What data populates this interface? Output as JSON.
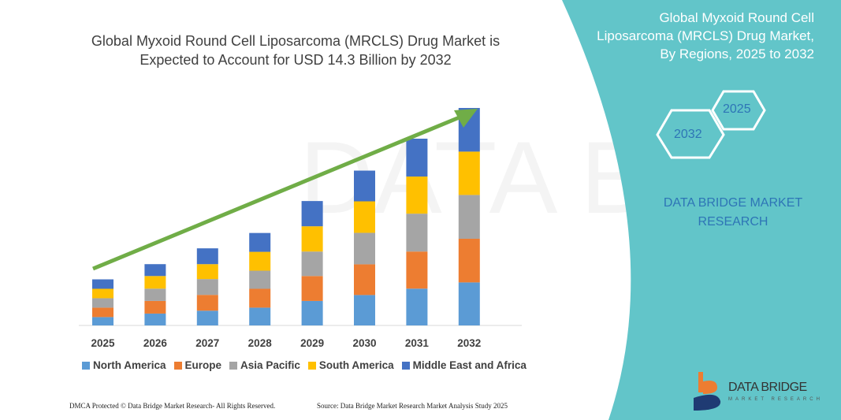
{
  "title": {
    "line1": "Global Myxoid Round Cell Liposarcoma (MRCLS) Drug Market is",
    "line2": "Expected to Account for USD 14.3 Billion by 2032"
  },
  "side_panel": {
    "line1": "Global Myxoid Round Cell",
    "line2": "Liposarcoma (MRCLS) Drug Market,",
    "line3": "By Regions, 2025 to 2032",
    "hex_a": "2025",
    "hex_b": "2032",
    "brand_line1": "DATA BRIDGE MARKET",
    "brand_line2": "RESEARCH",
    "color": "#62c5c9"
  },
  "logo": {
    "name": "DATA BRIDGE",
    "tagline": "MARKET RESEARCH"
  },
  "footer": {
    "left": "DMCA Protected © Data Bridge Market Research- All Rights Reserved.",
    "right": "Source: Data Bridge Market Research Market Analysis Study 2025"
  },
  "chart_data": {
    "type": "bar",
    "stacked": true,
    "title": "Global Myxoid Round Cell Liposarcoma (MRCLS) Drug Market is Expected to Account for USD 14.3 Billion by 2032",
    "categories": [
      "2025",
      "2026",
      "2027",
      "2028",
      "2029",
      "2030",
      "2031",
      "2032"
    ],
    "series": [
      {
        "name": "North America",
        "color": "#5b9bd5",
        "values": [
          0.55,
          0.78,
          0.97,
          1.17,
          1.61,
          2.0,
          2.42,
          2.83
        ]
      },
      {
        "name": "Europe",
        "color": "#ed7d31",
        "values": [
          0.62,
          0.83,
          1.04,
          1.24,
          1.64,
          2.02,
          2.44,
          2.87
        ]
      },
      {
        "name": "Asia Pacific",
        "color": "#a5a5a5",
        "values": [
          0.62,
          0.81,
          1.04,
          1.19,
          1.61,
          2.07,
          2.49,
          2.88
        ]
      },
      {
        "name": "South America",
        "color": "#ffc000",
        "values": [
          0.62,
          0.83,
          0.98,
          1.24,
          1.66,
          2.07,
          2.44,
          2.85
        ]
      },
      {
        "name": "Middle East and Africa",
        "color": "#4472c4",
        "values": [
          0.62,
          0.78,
          1.04,
          1.24,
          1.66,
          2.02,
          2.49,
          2.87
        ]
      }
    ],
    "ylim": [
      0,
      14.3
    ],
    "y_axis_visible": false,
    "grid": false,
    "legend": "bottom",
    "trend_arrow_color": "#70ad47"
  }
}
